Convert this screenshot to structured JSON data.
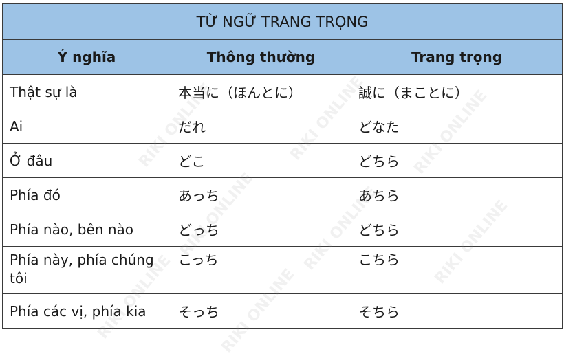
{
  "title": "TỪ NGỮ TRANG TRỌNG",
  "headers": [
    "Ý nghĩa",
    "Thông thường",
    "Trang trọng"
  ],
  "rows": [
    [
      "Thật sự là",
      "本当に（ほんとに）",
      "誠に（まことに）"
    ],
    [
      "Ai",
      "だれ",
      "どなた"
    ],
    [
      "Ở đâu",
      "どこ",
      "どちら"
    ],
    [
      "Phía đó",
      "あっち",
      "あちら"
    ],
    [
      "Phía nào, bên nào",
      "どっち",
      "どちら"
    ],
    [
      "Phía này, phía chúng tôi",
      "こっち",
      "こちら"
    ],
    [
      "Phía các vị, phía kia",
      "そっち",
      "そちら"
    ]
  ],
  "watermark": "RIKI ONLINE",
  "colors": {
    "header_bg": "#9dc3e6",
    "border": "#3a3a3a"
  }
}
